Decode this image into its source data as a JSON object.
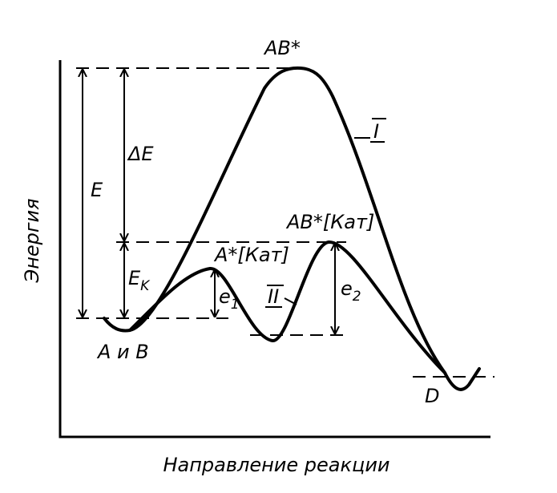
{
  "axes": {
    "y_label": "Энергия",
    "x_label": "Направление реакции"
  },
  "labels": {
    "transition_state": "AB*",
    "curve_1": "I",
    "curve_2": "II",
    "energy": "E",
    "delta_energy": "ΔE",
    "catalytic_energy": {
      "main": "E",
      "sub": "K"
    },
    "intermediate": "A*[Кат]",
    "catalytic_transition": "AB*[Кат]",
    "e1": {
      "main": "e",
      "sub": "1"
    },
    "e2": {
      "main": "e",
      "sub": "2"
    },
    "reactants": "A и B",
    "product": "D"
  }
}
